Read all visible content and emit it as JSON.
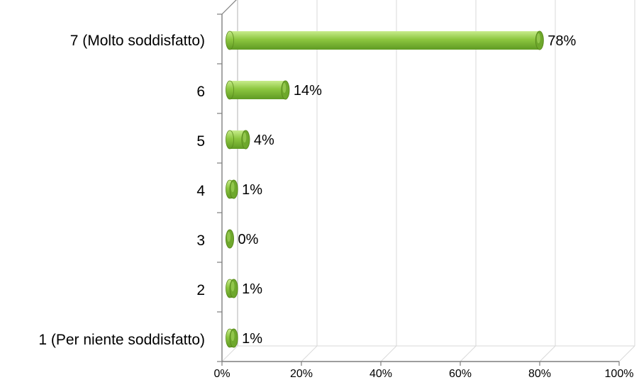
{
  "chart_data": {
    "type": "bar",
    "orientation": "horizontal",
    "three_d": true,
    "categories": [
      "1 (Per niente soddisfatto)",
      "2",
      "3",
      "4",
      "5",
      "6",
      "7 (Molto soddisfatto)"
    ],
    "values": [
      1,
      1,
      0,
      1,
      4,
      14,
      78
    ],
    "data_labels": [
      "1%",
      "1%",
      "0%",
      "1%",
      "4%",
      "14%",
      "78%"
    ],
    "xticks": [
      "0%",
      "20%",
      "40%",
      "60%",
      "80%",
      "100%"
    ],
    "xlim": [
      0,
      100
    ],
    "grid": true,
    "bar_color": "#8cc63f",
    "bar_edge_color": "#5a8a1e"
  }
}
